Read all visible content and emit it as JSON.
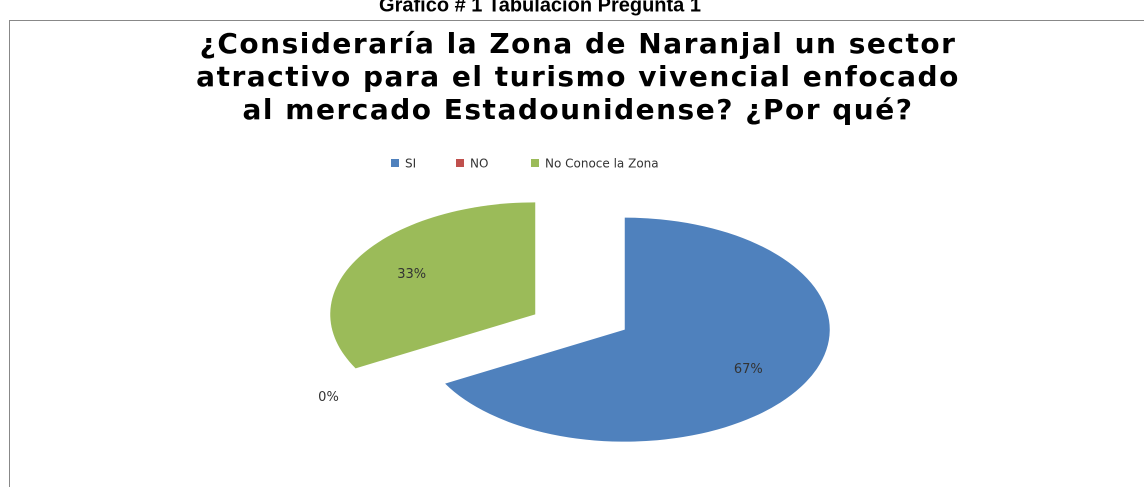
{
  "heading": "Grafico # 1 Tabulación Pregunta 1",
  "chart_data": {
    "type": "pie",
    "title": [
      "¿Consideraría la Zona de Naranjal un sector",
      "atractivo para el turismo vivencial enfocado",
      "al mercado Estadounidense? ¿Por qué?"
    ],
    "categories": [
      "SI",
      "NO",
      "No Conoce la Zona"
    ],
    "values": [
      67,
      0,
      33
    ],
    "value_labels": [
      "67%",
      "0%",
      "33%"
    ],
    "colors": [
      "#4f81bd",
      "#c0504d",
      "#9bbb59"
    ],
    "legend": "top"
  }
}
